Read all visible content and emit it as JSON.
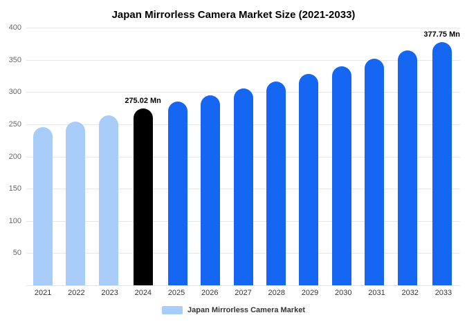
{
  "title": "Japan Mirrorless Camera Market Size (2021-2033)",
  "legend": {
    "label": "Japan Mirrorless Camera Market",
    "swatch_color": "#a8cdf8"
  },
  "colors": {
    "historical": "#a8cdf8",
    "highlight": "#000000",
    "forecast": "#1567f3",
    "gridline": "#e6e6e6"
  },
  "chart_data": {
    "type": "bar",
    "title": "Japan Mirrorless Camera Market Size (2021-2033)",
    "categories": [
      "2021",
      "2022",
      "2023",
      "2024",
      "2025",
      "2026",
      "2027",
      "2028",
      "2029",
      "2030",
      "2031",
      "2032",
      "2033"
    ],
    "values": [
      245.5,
      254.5,
      263.5,
      275.02,
      284.9,
      295.1,
      305.7,
      316.7,
      328.0,
      339.8,
      352.0,
      364.5,
      377.75
    ],
    "unit": "Mn",
    "bar_colors": [
      "#a8cdf8",
      "#a8cdf8",
      "#a8cdf8",
      "#000000",
      "#1567f3",
      "#1567f3",
      "#1567f3",
      "#1567f3",
      "#1567f3",
      "#1567f3",
      "#1567f3",
      "#1567f3",
      "#1567f3"
    ],
    "annotations": [
      {
        "category": "2024",
        "text": "275.02 Mn"
      },
      {
        "category": "2033",
        "text": "377.75 Mn"
      }
    ],
    "xlabel": "",
    "ylabel": "",
    "ylim": [
      0,
      400
    ],
    "yticks": [
      50,
      100,
      150,
      200,
      250,
      300,
      350,
      400
    ],
    "grid": true,
    "legend_position": "bottom"
  }
}
